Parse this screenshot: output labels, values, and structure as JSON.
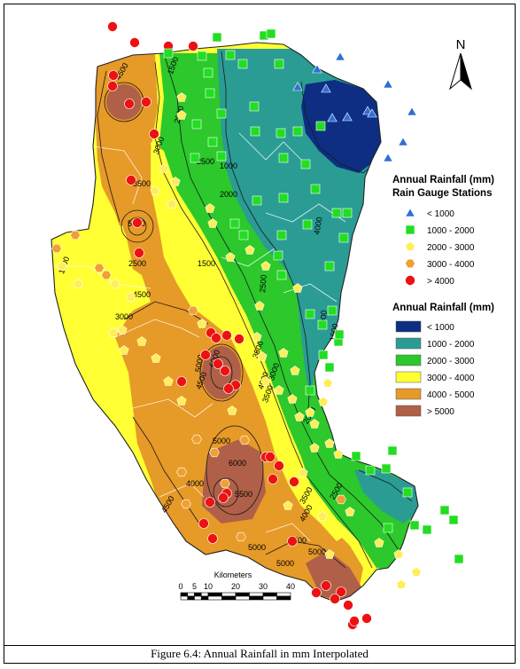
{
  "caption": "Figure 6.4: Annual Rainfall in mm Interpolated",
  "north_label": "N",
  "legend_stations": {
    "title_line1": "Annual Rainfall (mm)",
    "title_line2": "Rain Gauge Stations",
    "items": [
      {
        "label": "< 1000",
        "shape": "triangle",
        "color": "#2f6fd6"
      },
      {
        "label": "1000 - 2000",
        "shape": "square",
        "color": "#22dd22"
      },
      {
        "label": "2000 - 3000",
        "shape": "pentagon",
        "color": "#ffee55"
      },
      {
        "label": "3000 - 4000",
        "shape": "hexagon",
        "color": "#f0a030"
      },
      {
        "label": "> 4000",
        "shape": "circle",
        "color": "#ee1111"
      }
    ]
  },
  "legend_rainfall": {
    "title": "Annual Rainfall (mm)",
    "items": [
      {
        "label": "< 1000",
        "color": "#0d2e82"
      },
      {
        "label": "1000 - 2000",
        "color": "#2a9c94"
      },
      {
        "label": "2000 - 3000",
        "color": "#2cc82c"
      },
      {
        "label": "3000 - 4000",
        "color": "#ffff33"
      },
      {
        "label": "4000 - 5000",
        "color": "#e69a28"
      },
      {
        "label": "> 5000",
        "color": "#b06048"
      }
    ]
  },
  "scale_bar": {
    "title": "Kilometers",
    "ticks": [
      "0",
      "5",
      "10",
      "20",
      "30",
      "40"
    ]
  },
  "contour_labels": [
    "4500",
    "1500",
    "2000",
    "3000",
    "3500",
    "2500",
    "1000",
    "4000",
    "5000",
    "2500",
    "1500",
    "3000",
    "4500",
    "1500",
    "2000",
    "2500",
    "3500",
    "4000",
    "1000",
    "5000",
    "6000",
    "4500",
    "3500",
    "3000",
    "1500",
    "2000",
    "6000",
    "5500",
    "4000",
    "4500",
    "5000",
    "5000",
    "4500",
    "3500",
    "2500",
    "5000",
    "5000",
    "4000"
  ]
}
